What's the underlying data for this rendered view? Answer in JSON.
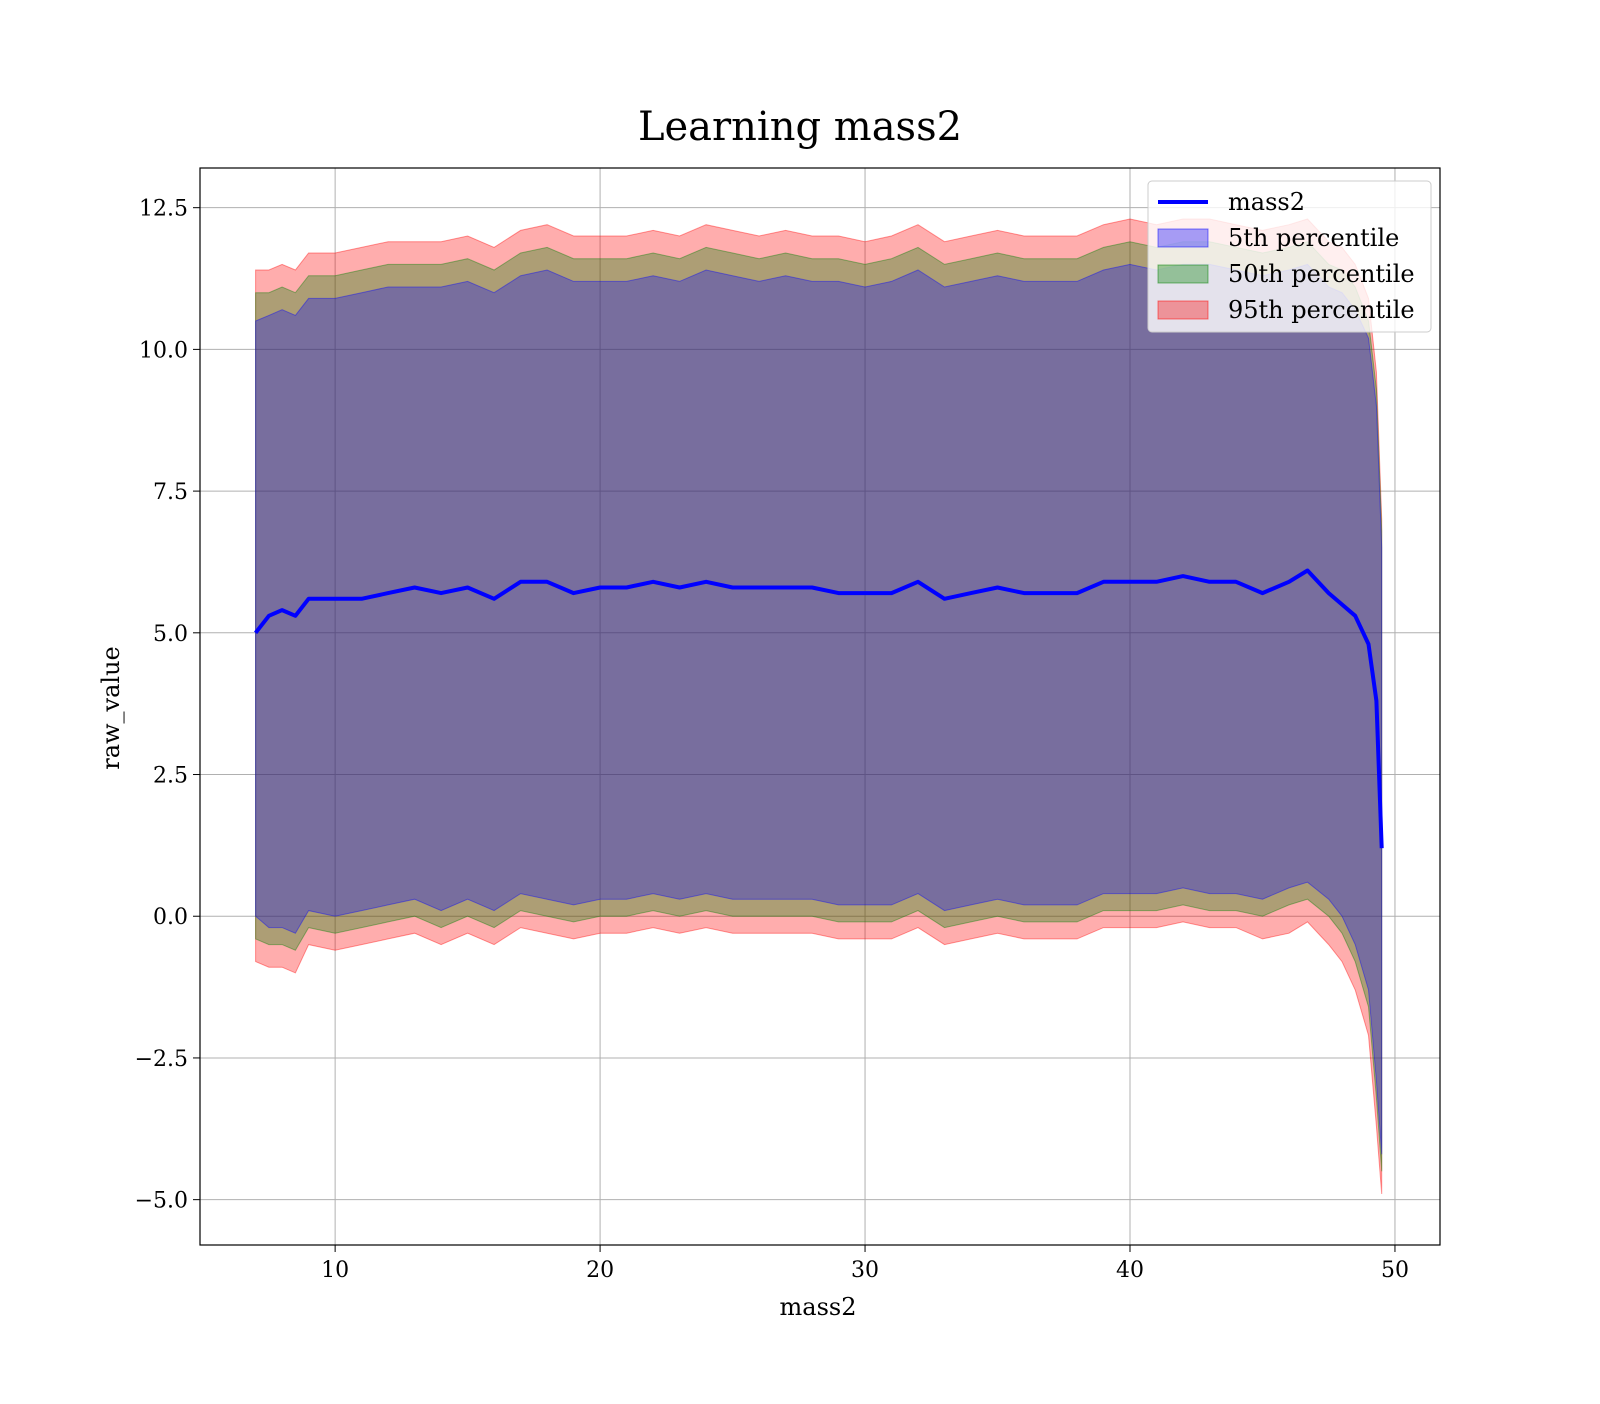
{
  "chart_data": {
    "type": "area",
    "title": "Learning mass2",
    "xlabel": "mass2",
    "ylabel": "raw_value",
    "xlim": [
      4.9,
      51.7
    ],
    "ylim": [
      -5.8,
      13.2
    ],
    "x_ticks": [
      10,
      20,
      30,
      40,
      50
    ],
    "x_tick_labels": [
      "10",
      "20",
      "30",
      "40",
      "50"
    ],
    "y_ticks": [
      -5.0,
      -2.5,
      0.0,
      2.5,
      5.0,
      7.5,
      10.0,
      12.5
    ],
    "y_tick_labels": [
      "−5.0",
      "−2.5",
      "0.0",
      "2.5",
      "5.0",
      "7.5",
      "10.0",
      "12.5"
    ],
    "grid": true,
    "legend_position": "top-right",
    "legend": [
      {
        "label": "mass2",
        "kind": "line",
        "color": "#0000ff"
      },
      {
        "label": "5th percentile",
        "kind": "band",
        "color": "#0000ff"
      },
      {
        "label": "50th percentile",
        "kind": "band",
        "color": "#008000"
      },
      {
        "label": "95th percentile",
        "kind": "band",
        "color": "#ff0000"
      }
    ],
    "x": [
      7.0,
      7.5,
      8.0,
      8.5,
      9.0,
      10.0,
      11.0,
      12.0,
      13.0,
      14.0,
      15.0,
      16.0,
      17.0,
      18.0,
      19.0,
      20.0,
      21.0,
      22.0,
      23.0,
      24.0,
      25.0,
      26.0,
      27.0,
      28.0,
      29.0,
      30.0,
      31.0,
      32.0,
      33.0,
      34.0,
      35.0,
      36.0,
      37.0,
      38.0,
      39.0,
      40.0,
      41.0,
      42.0,
      43.0,
      44.0,
      45.0,
      46.0,
      46.7,
      47.5,
      48.0,
      48.5,
      49.0,
      49.3,
      49.5
    ],
    "series": [
      {
        "name": "mass2",
        "color": "#0000ff",
        "values": [
          5.0,
          5.3,
          5.4,
          5.3,
          5.6,
          5.6,
          5.6,
          5.7,
          5.8,
          5.7,
          5.8,
          5.6,
          5.9,
          5.9,
          5.7,
          5.8,
          5.8,
          5.9,
          5.8,
          5.9,
          5.8,
          5.8,
          5.8,
          5.8,
          5.7,
          5.7,
          5.7,
          5.9,
          5.6,
          5.7,
          5.8,
          5.7,
          5.7,
          5.7,
          5.9,
          5.9,
          5.9,
          6.0,
          5.9,
          5.9,
          5.7,
          5.9,
          6.1,
          5.7,
          5.5,
          5.3,
          4.8,
          3.8,
          1.2
        ]
      },
      {
        "name": "5th percentile",
        "color": "#0000ff",
        "lower": [
          0.0,
          -0.2,
          -0.2,
          -0.3,
          0.1,
          0.0,
          0.1,
          0.2,
          0.3,
          0.1,
          0.3,
          0.1,
          0.4,
          0.3,
          0.2,
          0.3,
          0.3,
          0.4,
          0.3,
          0.4,
          0.3,
          0.3,
          0.3,
          0.3,
          0.2,
          0.2,
          0.2,
          0.4,
          0.1,
          0.2,
          0.3,
          0.2,
          0.2,
          0.2,
          0.4,
          0.4,
          0.4,
          0.5,
          0.4,
          0.4,
          0.3,
          0.5,
          0.6,
          0.3,
          0.0,
          -0.5,
          -1.3,
          -2.9,
          -4.2
        ],
        "upper": [
          10.5,
          10.6,
          10.7,
          10.6,
          10.9,
          10.9,
          11.0,
          11.1,
          11.1,
          11.1,
          11.2,
          11.0,
          11.3,
          11.4,
          11.2,
          11.2,
          11.2,
          11.3,
          11.2,
          11.4,
          11.3,
          11.2,
          11.3,
          11.2,
          11.2,
          11.1,
          11.2,
          11.4,
          11.1,
          11.2,
          11.3,
          11.2,
          11.2,
          11.2,
          11.4,
          11.5,
          11.4,
          11.5,
          11.5,
          11.4,
          11.3,
          11.4,
          11.5,
          11.1,
          11.0,
          10.7,
          10.2,
          9.0,
          6.5
        ]
      },
      {
        "name": "50th percentile",
        "color": "#008000",
        "lower": [
          -0.4,
          -0.5,
          -0.5,
          -0.6,
          -0.2,
          -0.3,
          -0.2,
          -0.1,
          0.0,
          -0.2,
          0.0,
          -0.2,
          0.1,
          0.0,
          -0.1,
          0.0,
          0.0,
          0.1,
          0.0,
          0.1,
          0.0,
          0.0,
          0.0,
          0.0,
          -0.1,
          -0.1,
          -0.1,
          0.1,
          -0.2,
          -0.1,
          0.0,
          -0.1,
          -0.1,
          -0.1,
          0.1,
          0.1,
          0.1,
          0.2,
          0.1,
          0.1,
          0.0,
          0.2,
          0.3,
          0.0,
          -0.3,
          -0.8,
          -1.6,
          -3.2,
          -4.5
        ],
        "upper": [
          11.0,
          11.0,
          11.1,
          11.0,
          11.3,
          11.3,
          11.4,
          11.5,
          11.5,
          11.5,
          11.6,
          11.4,
          11.7,
          11.8,
          11.6,
          11.6,
          11.6,
          11.7,
          11.6,
          11.8,
          11.7,
          11.6,
          11.7,
          11.6,
          11.6,
          11.5,
          11.6,
          11.8,
          11.5,
          11.6,
          11.7,
          11.6,
          11.6,
          11.6,
          11.8,
          11.9,
          11.8,
          11.9,
          11.9,
          11.8,
          11.7,
          11.8,
          11.9,
          11.5,
          11.4,
          11.1,
          10.5,
          9.3,
          6.8
        ]
      },
      {
        "name": "95th percentile",
        "color": "#ff0000",
        "lower": [
          -0.8,
          -0.9,
          -0.9,
          -1.0,
          -0.5,
          -0.6,
          -0.5,
          -0.4,
          -0.3,
          -0.5,
          -0.3,
          -0.5,
          -0.2,
          -0.3,
          -0.4,
          -0.3,
          -0.3,
          -0.2,
          -0.3,
          -0.2,
          -0.3,
          -0.3,
          -0.3,
          -0.3,
          -0.4,
          -0.4,
          -0.4,
          -0.2,
          -0.5,
          -0.4,
          -0.3,
          -0.4,
          -0.4,
          -0.4,
          -0.2,
          -0.2,
          -0.2,
          -0.1,
          -0.2,
          -0.2,
          -0.4,
          -0.3,
          -0.1,
          -0.5,
          -0.8,
          -1.3,
          -2.1,
          -3.7,
          -4.9
        ],
        "upper": [
          11.4,
          11.4,
          11.5,
          11.4,
          11.7,
          11.7,
          11.8,
          11.9,
          11.9,
          11.9,
          12.0,
          11.8,
          12.1,
          12.2,
          12.0,
          12.0,
          12.0,
          12.1,
          12.0,
          12.2,
          12.1,
          12.0,
          12.1,
          12.0,
          12.0,
          11.9,
          12.0,
          12.2,
          11.9,
          12.0,
          12.1,
          12.0,
          12.0,
          12.0,
          12.2,
          12.3,
          12.2,
          12.3,
          12.3,
          12.2,
          12.1,
          12.2,
          12.3,
          11.9,
          11.8,
          11.5,
          10.9,
          9.6,
          7.0
        ]
      }
    ]
  }
}
